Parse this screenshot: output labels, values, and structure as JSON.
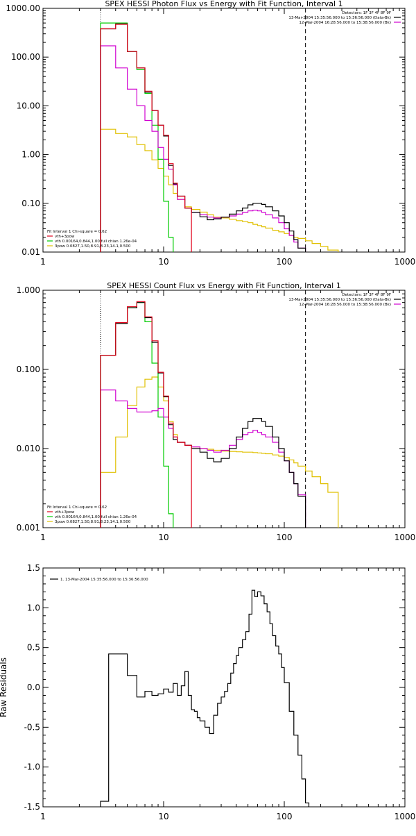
{
  "chart_data": [
    {
      "type": "line",
      "title": "SPEX HESSI Photon Flux vs Energy with Fit Function, Interval 1",
      "xlabel": "",
      "ylabel": "",
      "xscale": "log",
      "yscale": "log",
      "xlim": [
        1,
        1000
      ],
      "ylim": [
        0.01,
        1000
      ],
      "x_ticks": [
        "1",
        "10",
        "100",
        "1000"
      ],
      "y_ticks": [
        "0.01",
        "0.10",
        "1.00",
        "10.00",
        "100.00",
        "1000.00"
      ],
      "vlines": [
        {
          "x": 3,
          "style": "dotted"
        },
        {
          "x": 150,
          "style": "dashed"
        }
      ],
      "info_lines": [
        "Detectors: 1F 3F 4F 8F 9F",
        "13-Mar-2004 15:35:56.000 to 15:36:56.000 (Data-Bk)",
        "12-Mar-2004 16:28:56.000 to 15:38:56.000 (Bk)"
      ],
      "fit_label": "Fit Interval 1    Chi-square = 0.62",
      "legend": [
        {
          "text": "vth+3pow",
          "color": "#e0001a"
        },
        {
          "text": "vth 0.00164,0.844,1.00  full chian 1.26e-04",
          "color": "#00cc00"
        },
        {
          "text": "3pow 0.0827,1.50,8.91,8.23,14.1,0.500",
          "color": "#e0c000"
        }
      ],
      "series": [
        {
          "name": "13-Mar-2004 15:35:56.000 to 15:36:56.000 (Data-Bk)",
          "color": "#000000",
          "x": [
            3,
            4,
            5,
            6,
            7,
            8,
            9,
            10,
            11,
            12,
            13,
            15,
            17,
            20,
            23,
            26,
            30,
            35,
            40,
            45,
            50,
            55,
            60,
            65,
            70,
            80,
            90,
            100,
            110,
            120,
            130,
            150
          ],
          "y": [
            380,
            480,
            130,
            60,
            19,
            8,
            4,
            2.4,
            0.6,
            0.25,
            0.14,
            0.08,
            0.065,
            0.053,
            0.046,
            0.048,
            0.052,
            0.06,
            0.07,
            0.08,
            0.093,
            0.1,
            0.1,
            0.095,
            0.085,
            0.07,
            0.055,
            0.04,
            0.027,
            0.018,
            0.012,
            null
          ]
        },
        {
          "name": "vth+3pow",
          "color": "#e0001a",
          "x": [
            3,
            4,
            5,
            6,
            7,
            8,
            9,
            10,
            11,
            12,
            13,
            15,
            17,
            20,
            23,
            26,
            30,
            35,
            40,
            45,
            50,
            55,
            60,
            65,
            70,
            80,
            90,
            100,
            110,
            120,
            130,
            150
          ],
          "y": [
            380,
            470,
            130,
            60,
            20,
            8,
            4,
            2.5,
            0.65,
            0.26,
            0.14,
            0.08,
            null,
            null,
            null,
            null,
            null,
            null,
            null,
            null,
            null,
            null,
            null,
            null,
            null,
            null,
            null,
            null,
            null,
            null,
            null,
            null
          ]
        },
        {
          "name": "12-Mar-2004 16:28:56.000 to 15:38:56.000 (Bk)",
          "color": "#d000d0",
          "x": [
            3,
            4,
            5,
            6,
            7,
            8,
            9,
            10,
            11,
            12,
            13,
            15,
            17,
            20,
            23,
            26,
            30,
            35,
            40,
            45,
            50,
            55,
            60,
            65,
            70,
            80,
            90,
            100,
            110,
            120,
            130,
            150
          ],
          "y": [
            170,
            60,
            22,
            10,
            5,
            3,
            1.4,
            0.8,
            0.5,
            0.24,
            0.12,
            0.08,
            0.065,
            0.058,
            0.052,
            0.05,
            0.052,
            0.055,
            0.06,
            0.065,
            0.07,
            0.072,
            0.07,
            0.065,
            0.058,
            0.05,
            0.04,
            0.03,
            0.022,
            0.016,
            0.012,
            null
          ]
        },
        {
          "name": "vth 0.00164,0.844,1.00",
          "color": "#00cc00",
          "x": [
            3,
            4,
            5,
            6,
            7,
            8,
            9,
            10,
            11,
            12
          ],
          "y": [
            500,
            500,
            130,
            55,
            18,
            4,
            0.8,
            0.11,
            0.02,
            null
          ]
        },
        {
          "name": "3pow 0.0827,1.50,8.91,8.23,14.1,0.500",
          "color": "#e0c000",
          "x": [
            3,
            4,
            5,
            6,
            7,
            8,
            9,
            10,
            11,
            12,
            13,
            15,
            17,
            20,
            23,
            26,
            30,
            35,
            40,
            45,
            50,
            55,
            60,
            65,
            70,
            80,
            90,
            100,
            110,
            120,
            130,
            150,
            170,
            200,
            230,
            280
          ],
          "y": [
            3.3,
            2.7,
            2.3,
            1.6,
            1.2,
            0.78,
            0.52,
            0.36,
            0.24,
            0.16,
            0.12,
            0.085,
            0.075,
            0.066,
            0.058,
            0.052,
            0.05,
            0.047,
            0.044,
            0.042,
            0.04,
            0.037,
            0.035,
            0.033,
            0.031,
            0.028,
            0.026,
            0.024,
            0.022,
            0.02,
            0.019,
            0.017,
            0.015,
            0.013,
            0.011,
            null
          ]
        }
      ]
    },
    {
      "type": "line",
      "title": "SPEX HESSI Count Flux vs Energy with Fit Function, Interval 1",
      "xlabel": "",
      "ylabel": "",
      "xscale": "log",
      "yscale": "log",
      "xlim": [
        1,
        1000
      ],
      "ylim": [
        0.001,
        1
      ],
      "x_ticks": [
        "1",
        "10",
        "100",
        "1000"
      ],
      "y_ticks": [
        "0.001",
        "0.010",
        "0.100",
        "1.000"
      ],
      "vlines": [
        {
          "x": 3,
          "style": "dotted"
        },
        {
          "x": 150,
          "style": "dashed"
        }
      ],
      "info_lines": [
        "Detectors: 1F 3F 4F 8F 9F",
        "13-Mar-2004 15:35:56.000 to 15:36:56.000 (Data-Bk)",
        "12-Mar-2004 16:28:56.000 to 15:38:56.000 (Bk)"
      ],
      "fit_label": "Fit Interval 1    Chi-square = 0.62",
      "legend": [
        {
          "text": "vth+3pow",
          "color": "#e0001a"
        },
        {
          "text": "vth 0.00164,0.844,1.00  full chian 1.26e-04",
          "color": "#00cc00"
        },
        {
          "text": "3pow 0.0827,1.50,8.91,8.23,14.1,0.500",
          "color": "#e0c000"
        }
      ],
      "series": [
        {
          "name": "13-Mar-2004 15:35:56.000 to 15:36:56.000 (Data-Bk)",
          "color": "#000000",
          "x": [
            3,
            4,
            5,
            6,
            7,
            8,
            9,
            10,
            11,
            12,
            13,
            15,
            17,
            20,
            23,
            26,
            30,
            35,
            40,
            45,
            50,
            55,
            60,
            65,
            70,
            80,
            90,
            100,
            110,
            120,
            130,
            150
          ],
          "y": [
            0.15,
            0.38,
            0.6,
            0.7,
            0.45,
            0.22,
            0.09,
            0.045,
            0.02,
            0.013,
            0.012,
            0.011,
            0.01,
            0.009,
            0.0075,
            0.0068,
            0.0075,
            0.01,
            0.014,
            0.018,
            0.022,
            0.024,
            0.024,
            0.022,
            0.019,
            0.014,
            0.01,
            0.007,
            0.005,
            0.0036,
            0.0025,
            null
          ]
        },
        {
          "name": "vth+3pow",
          "color": "#e0001a",
          "x": [
            3,
            4,
            5,
            6,
            7,
            8,
            9,
            10,
            11,
            12,
            13,
            15,
            17,
            20,
            23,
            26,
            30,
            35,
            40,
            45,
            50,
            55,
            60,
            65,
            70,
            80,
            90,
            100,
            110,
            120,
            130,
            150
          ],
          "y": [
            0.15,
            0.39,
            0.62,
            0.72,
            0.46,
            0.23,
            0.092,
            0.046,
            0.021,
            0.014,
            0.012,
            0.011,
            null,
            null,
            null,
            null,
            null,
            null,
            null,
            null,
            null,
            null,
            null,
            null,
            null,
            null,
            null,
            null,
            null,
            null,
            null,
            null
          ]
        },
        {
          "name": "12-Mar-2004 16:28:56.000 to 15:38:56.000 (Bk)",
          "color": "#d000d0",
          "x": [
            3,
            4,
            5,
            6,
            7,
            8,
            9,
            10,
            11,
            12,
            13,
            15,
            17,
            20,
            23,
            26,
            30,
            35,
            40,
            45,
            50,
            55,
            60,
            65,
            70,
            80,
            90,
            100,
            110,
            120,
            130,
            150
          ],
          "y": [
            0.055,
            0.04,
            0.032,
            0.029,
            0.029,
            0.03,
            0.032,
            0.025,
            0.018,
            0.014,
            0.012,
            0.011,
            0.0105,
            0.01,
            0.0095,
            0.009,
            0.0095,
            0.011,
            0.013,
            0.015,
            0.016,
            0.017,
            0.016,
            0.015,
            0.014,
            0.012,
            0.009,
            0.007,
            0.005,
            0.0036,
            0.0026,
            null
          ]
        },
        {
          "name": "vth 0.00164,0.844,1.00",
          "color": "#00cc00",
          "x": [
            3,
            4,
            5,
            6,
            7,
            8,
            9,
            10,
            11,
            12
          ],
          "y": [
            0.15,
            0.38,
            0.6,
            0.7,
            0.4,
            0.12,
            0.025,
            0.006,
            0.0015,
            null
          ]
        },
        {
          "name": "3pow 0.0827,1.50,8.91,8.23,14.1,0.500",
          "color": "#e0c000",
          "x": [
            3,
            4,
            5,
            6,
            7,
            8,
            9,
            10,
            11,
            12,
            13,
            15,
            17,
            20,
            23,
            26,
            30,
            35,
            40,
            45,
            50,
            55,
            60,
            65,
            70,
            80,
            90,
            100,
            110,
            120,
            130,
            150,
            170,
            200,
            230,
            280
          ],
          "y": [
            0.005,
            0.014,
            0.035,
            0.06,
            0.075,
            0.08,
            0.06,
            0.04,
            0.022,
            0.015,
            0.012,
            0.011,
            0.0105,
            0.01,
            0.0098,
            0.0095,
            0.0093,
            0.0092,
            0.0091,
            0.009,
            0.009,
            0.0089,
            0.0088,
            0.0087,
            0.0086,
            0.0083,
            0.008,
            0.0077,
            0.0072,
            0.0066,
            0.006,
            0.0052,
            0.0044,
            0.0036,
            0.0028,
            null
          ]
        }
      ]
    },
    {
      "type": "line",
      "title": "",
      "xlabel": "",
      "ylabel": "Raw Residuals",
      "xscale": "log",
      "yscale": "linear",
      "xlim": [
        1,
        1000
      ],
      "ylim": [
        -1.5,
        1.5
      ],
      "x_ticks": [
        "1",
        "10",
        "100",
        "1000"
      ],
      "y_ticks": [
        "-1.5",
        "-1.0",
        "-0.5",
        "0.0",
        "0.5",
        "1.0",
        "1.5"
      ],
      "legend": [
        {
          "text": "1. 13-Mar-2004 15:35:56.000 to 15:36:56.000",
          "color": "#000000"
        }
      ],
      "series": [
        {
          "name": "1. 13-Mar-2004 15:35:56.000 to 15:36:56.000",
          "color": "#000000",
          "x": [
            3,
            3.5,
            4,
            5,
            6,
            7,
            8,
            9,
            10,
            11,
            12,
            13,
            14,
            15,
            16,
            17,
            18,
            19,
            20,
            22,
            24,
            26,
            28,
            30,
            32,
            34,
            36,
            38,
            40,
            42,
            45,
            48,
            51,
            54,
            57,
            60,
            64,
            68,
            72,
            76,
            80,
            85,
            90,
            95,
            100,
            110,
            120,
            130,
            140,
            150,
            160
          ],
          "y": [
            -1.43,
            0.42,
            0.42,
            0.15,
            -0.12,
            -0.05,
            -0.1,
            -0.08,
            -0.02,
            -0.06,
            0.05,
            -0.1,
            0.02,
            0.2,
            -0.1,
            -0.28,
            -0.3,
            -0.38,
            -0.42,
            -0.5,
            -0.58,
            -0.35,
            -0.2,
            -0.12,
            -0.05,
            0.05,
            0.18,
            0.3,
            0.4,
            0.5,
            0.6,
            0.7,
            0.92,
            1.22,
            1.14,
            1.2,
            1.15,
            1.05,
            0.95,
            0.8,
            0.65,
            0.52,
            0.42,
            0.25,
            0.06,
            -0.3,
            -0.6,
            -0.85,
            -1.15,
            -1.45,
            null
          ]
        }
      ]
    }
  ]
}
